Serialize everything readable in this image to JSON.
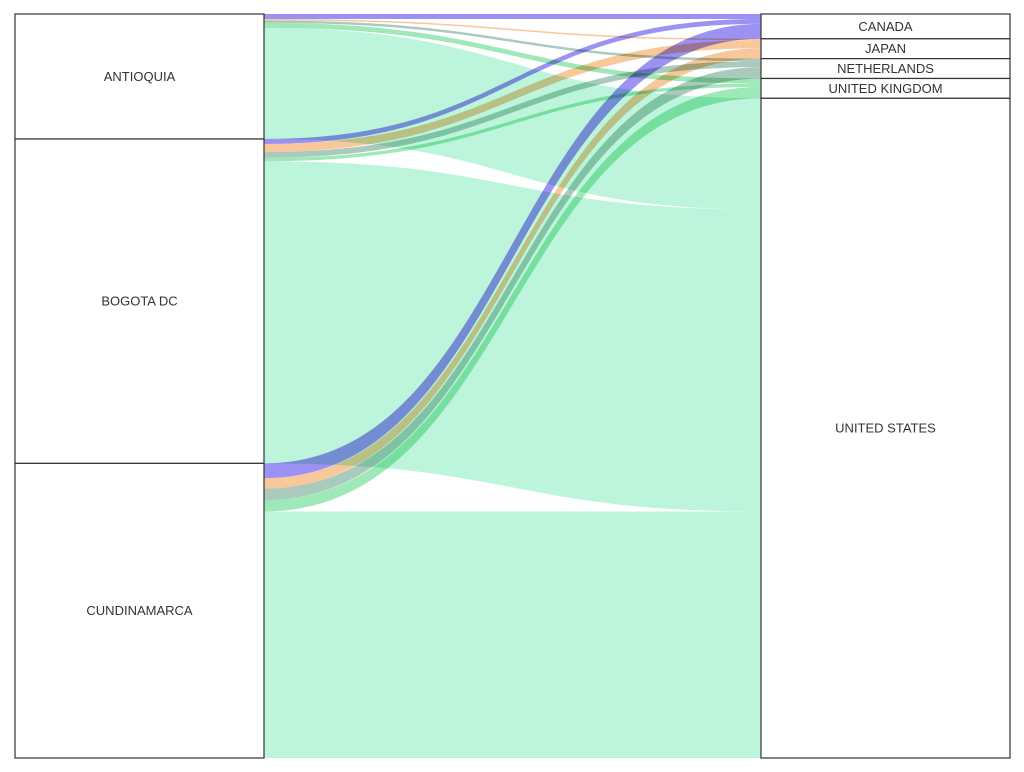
{
  "chart_data": {
    "type": "sankey",
    "sources": [
      "ANTIOQUIA",
      "BOGOTA DC",
      "CUNDINAMARCA"
    ],
    "targets": [
      "CANADA",
      "JAPAN",
      "NETHERLANDS",
      "UNITED KINGDOM",
      "UNITED STATES"
    ],
    "colors": {
      "CANADA": "#7b6df0",
      "JAPAN": "#f5b57a",
      "NETHERLANDS": "#8fb8a8",
      "UNITED KINGDOM": "#7fe0a0",
      "UNITED STATES": "#bdf5dc"
    },
    "flows": [
      {
        "source": "ANTIOQUIA",
        "target": "CANADA",
        "value": 1.0
      },
      {
        "source": "ANTIOQUIA",
        "target": "JAPAN",
        "value": 0.3
      },
      {
        "source": "ANTIOQUIA",
        "target": "NETHERLANDS",
        "value": 0.5
      },
      {
        "source": "ANTIOQUIA",
        "target": "UNITED KINGDOM",
        "value": 1.0
      },
      {
        "source": "ANTIOQUIA",
        "target": "UNITED STATES",
        "value": 22.4
      },
      {
        "source": "BOGOTA DC",
        "target": "CANADA",
        "value": 1.0
      },
      {
        "source": "BOGOTA DC",
        "target": "JAPAN",
        "value": 1.6
      },
      {
        "source": "BOGOTA DC",
        "target": "NETHERLANDS",
        "value": 1.2
      },
      {
        "source": "BOGOTA DC",
        "target": "UNITED KINGDOM",
        "value": 0.7
      },
      {
        "source": "BOGOTA DC",
        "target": "UNITED STATES",
        "value": 60.9
      },
      {
        "source": "CUNDINAMARCA",
        "target": "CANADA",
        "value": 3.0
      },
      {
        "source": "CUNDINAMARCA",
        "target": "JAPAN",
        "value": 2.1
      },
      {
        "source": "CUNDINAMARCA",
        "target": "NETHERLANDS",
        "value": 2.3
      },
      {
        "source": "CUNDINAMARCA",
        "target": "UNITED KINGDOM",
        "value": 2.3
      },
      {
        "source": "CUNDINAMARCA",
        "target": "UNITED STATES",
        "value": 49.7
      }
    ]
  }
}
